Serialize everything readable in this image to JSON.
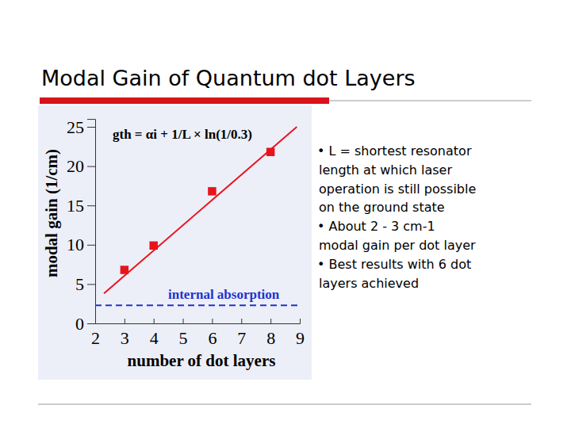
{
  "slide": {
    "title": "Modal Gain of Quantum dot Layers",
    "bullets": [
      [
        "• L = shortest resonator",
        "length at which laser",
        "operation is still possible",
        "on the ground state"
      ],
      [
        "• About 2 - 3 cm-1",
        "modal gain per dot layer"
      ],
      [
        "• Best results with 6 dot",
        "layers achieved"
      ]
    ]
  },
  "chart_data": {
    "type": "scatter",
    "x_label": "number of dot layers",
    "y_label": "modal gain (1/cm)",
    "xlim": [
      2,
      9
    ],
    "xticks": [
      2,
      3,
      4,
      5,
      6,
      7,
      8,
      9
    ],
    "ylim": [
      0,
      26
    ],
    "yticks": [
      0,
      5,
      10,
      15,
      20,
      25
    ],
    "series": [
      {
        "type": "scatter",
        "color": "#e8141c",
        "marker": "square",
        "x": [
          3,
          4,
          6,
          8
        ],
        "values": [
          6.8,
          9.9,
          16.8,
          21.8
        ]
      },
      {
        "type": "line",
        "color": "#e8141c",
        "line_style": "solid",
        "x": [
          2.3,
          8.9
        ],
        "values": [
          3.8,
          25
        ]
      },
      {
        "type": "line",
        "color": "#2233cc",
        "line_style": "dashed",
        "x": [
          2,
          9
        ],
        "values": [
          2.3,
          2.3
        ]
      }
    ],
    "annotations": [
      {
        "text": "gth = αi + 1/L × ln(1/0.3)"
      },
      {
        "text": "internal absorption",
        "color": "#2233cc"
      }
    ]
  }
}
